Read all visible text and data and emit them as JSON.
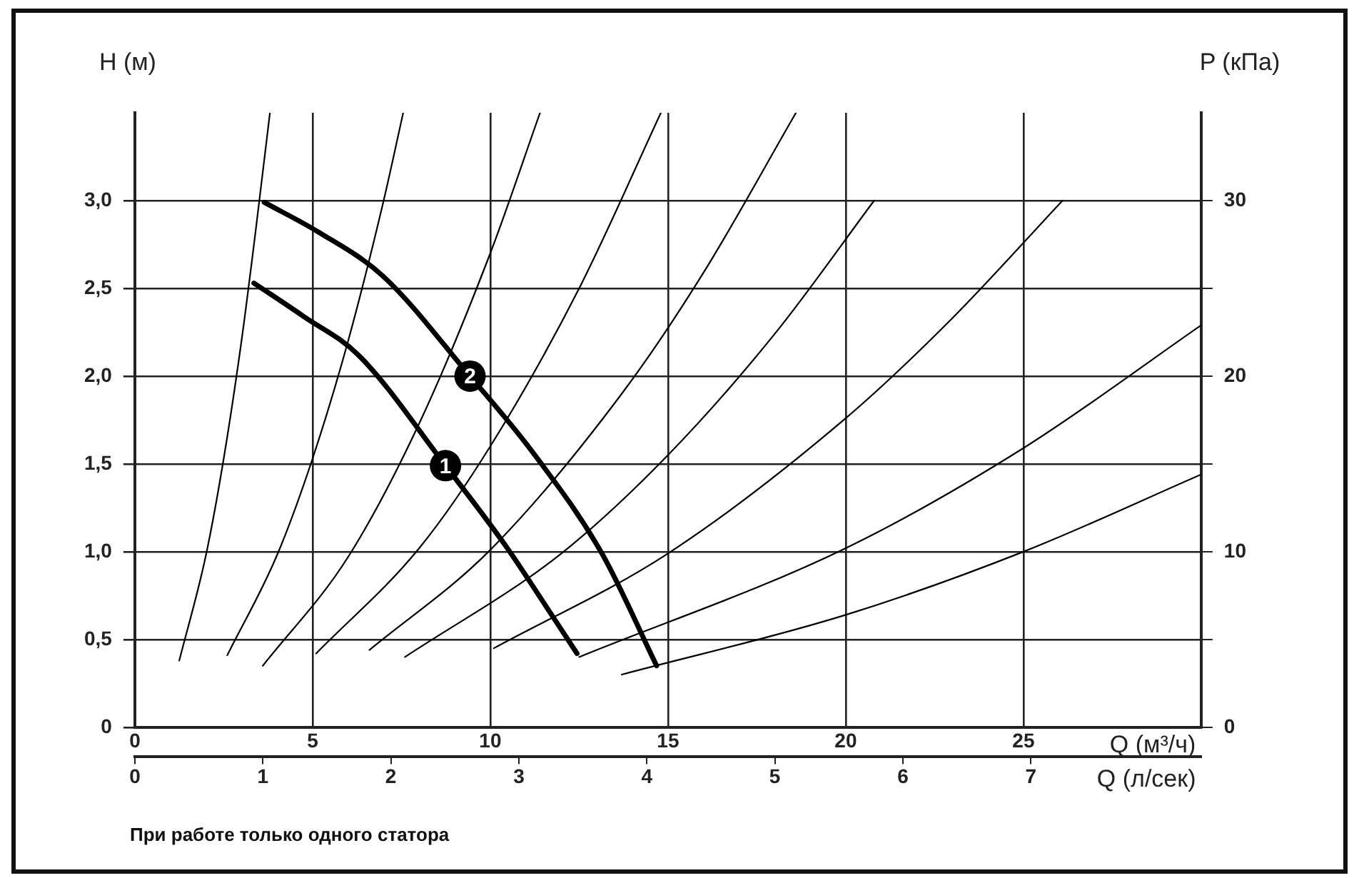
{
  "chart_data": {
    "type": "line",
    "xlabel": "Q (м³/ч)",
    "x2label": "Q (л/сек)",
    "ylabel": "H (м)",
    "y2label": "P (кПа)",
    "annotations": [
      "При работе только одного статора"
    ],
    "xlim": [
      0,
      30
    ],
    "xticks": [
      0,
      5,
      10,
      15,
      20,
      25
    ],
    "x2lim": [
      0,
      8.33
    ],
    "x2ticks": [
      0,
      1,
      2,
      3,
      4,
      5,
      6,
      7
    ],
    "ylim": [
      0,
      3.5
    ],
    "yticks": [
      0,
      {
        "value": 0.5,
        "label": "0,5"
      },
      {
        "value": 1,
        "label": "1,0"
      },
      {
        "value": 1.5,
        "label": "1,5"
      },
      {
        "value": 2,
        "label": "2,0"
      },
      {
        "value": 2.5,
        "label": "2,5"
      },
      {
        "value": 3,
        "label": "3,0"
      }
    ],
    "y2lim": [
      0,
      35
    ],
    "y2ticks": [
      0,
      {
        "value": 5,
        "label": null
      },
      10,
      {
        "value": 15,
        "label": null
      },
      20,
      {
        "value": 25,
        "label": null
      },
      30
    ],
    "grid": true,
    "marker": "none",
    "line_style": "solid",
    "series": [
      {
        "name": "1",
        "color": "#000000",
        "x": [
          3.35,
          4.75,
          6.29,
          8.74,
          10.48,
          11.5,
          12.44
        ],
        "values": [
          2.53,
          2.34,
          2.12,
          1.49,
          1.02,
          0.71,
          0.42
        ]
      },
      {
        "name": "2",
        "color": "#000000",
        "x": [
          3.64,
          5.17,
          6.98,
          9.43,
          11.18,
          13.14,
          14.68
        ],
        "values": [
          2.99,
          2.82,
          2.57,
          2.0,
          1.57,
          0.99,
          0.35
        ]
      },
      {
        "color": "#000000",
        "x": [
          1.25,
          2,
          2.5,
          3,
          3.4,
          3.8
        ],
        "values": [
          0.38,
          0.98,
          1.53,
          2.2,
          2.83,
          3.5
        ]
      },
      {
        "color": "#000000",
        "x": [
          2.6,
          4,
          5,
          6,
          7,
          7.55
        ],
        "values": [
          0.41,
          0.98,
          1.53,
          2.2,
          3.0,
          3.5
        ]
      },
      {
        "color": "#000000",
        "x": [
          3.6,
          6,
          8,
          10,
          11.4
        ],
        "values": [
          0.35,
          0.97,
          1.73,
          2.7,
          3.5
        ]
      },
      {
        "color": "#000000",
        "x": [
          5.1,
          8,
          10,
          12.5,
          14.8
        ],
        "values": [
          0.42,
          1.02,
          1.6,
          2.5,
          3.5
        ]
      },
      {
        "color": "#000000",
        "x": [
          6.6,
          10,
          13.7,
          16,
          18.6
        ],
        "values": [
          0.44,
          1.01,
          1.9,
          2.59,
          3.5
        ]
      },
      {
        "color": "#000000",
        "x": [
          7.6,
          12,
          15,
          18,
          20.8
        ],
        "values": [
          0.4,
          0.99,
          1.55,
          2.24,
          3.0
        ]
      },
      {
        "color": "#000000",
        "x": [
          10.1,
          15,
          20,
          23,
          26.1
        ],
        "values": [
          0.45,
          0.99,
          1.76,
          2.33,
          3.0
        ]
      },
      {
        "color": "#000000",
        "x": [
          12.5,
          20,
          25,
          30
        ],
        "values": [
          0.4,
          1.02,
          1.59,
          2.29
        ]
      },
      {
        "color": "#000000",
        "x": [
          13.7,
          20,
          25,
          30
        ],
        "values": [
          0.3,
          0.64,
          1.0,
          1.44
        ]
      }
    ]
  }
}
